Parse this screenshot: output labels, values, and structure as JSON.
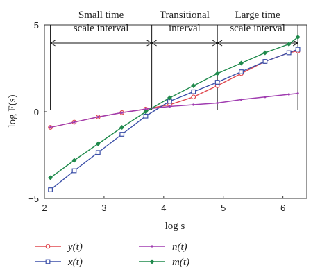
{
  "chart_data": {
    "type": "line",
    "xlabel": "log s",
    "ylabel": "log F(s)",
    "xlim": [
      2,
      6.4
    ],
    "ylim": [
      -5,
      5
    ],
    "xticks": [
      2,
      3,
      4,
      5,
      6
    ],
    "yticks": [
      -5,
      0,
      5
    ],
    "legend_position": "bottom",
    "annotations": [
      {
        "lines": [
          "Small time",
          "scale interval"
        ],
        "x_start": 2.1,
        "x_end": 3.8
      },
      {
        "lines": [
          "Transitional",
          "interval"
        ],
        "x_start": 3.8,
        "x_end": 4.9
      },
      {
        "lines": [
          "Large time",
          "scale interval"
        ],
        "x_start": 4.9,
        "x_end": 6.25
      }
    ],
    "series": [
      {
        "name": "y(t)",
        "color": "#e0484f",
        "marker": "circle",
        "x": [
          2.1,
          2.5,
          2.9,
          3.3,
          3.7,
          4.1,
          4.5,
          4.9,
          5.3,
          5.7,
          6.1,
          6.25
        ],
        "y": [
          -0.9,
          -0.6,
          -0.3,
          -0.05,
          0.15,
          0.4,
          0.85,
          1.5,
          2.2,
          2.9,
          3.4,
          3.5
        ]
      },
      {
        "name": "x(t)",
        "color": "#3b4fa8",
        "marker": "square",
        "x": [
          2.1,
          2.5,
          2.9,
          3.3,
          3.7,
          4.1,
          4.5,
          4.9,
          5.3,
          5.7,
          6.1,
          6.25
        ],
        "y": [
          -4.5,
          -3.4,
          -2.35,
          -1.3,
          -0.25,
          0.6,
          1.15,
          1.7,
          2.3,
          2.9,
          3.4,
          3.6
        ]
      },
      {
        "name": "n(t)",
        "color": "#a03cb0",
        "marker": "dot",
        "x": [
          2.1,
          2.5,
          2.9,
          3.3,
          3.7,
          4.1,
          4.5,
          4.9,
          5.3,
          5.7,
          6.1,
          6.25
        ],
        "y": [
          -0.9,
          -0.6,
          -0.3,
          -0.05,
          0.15,
          0.3,
          0.4,
          0.5,
          0.7,
          0.85,
          1.0,
          1.05
        ]
      },
      {
        "name": "m(t)",
        "color": "#1f8a4c",
        "marker": "diamond",
        "x": [
          2.1,
          2.5,
          2.9,
          3.3,
          3.7,
          4.1,
          4.5,
          4.9,
          5.3,
          5.7,
          6.1,
          6.25
        ],
        "y": [
          -3.8,
          -2.8,
          -1.85,
          -0.9,
          0.0,
          0.8,
          1.5,
          2.2,
          2.8,
          3.4,
          3.9,
          4.3
        ]
      }
    ]
  }
}
